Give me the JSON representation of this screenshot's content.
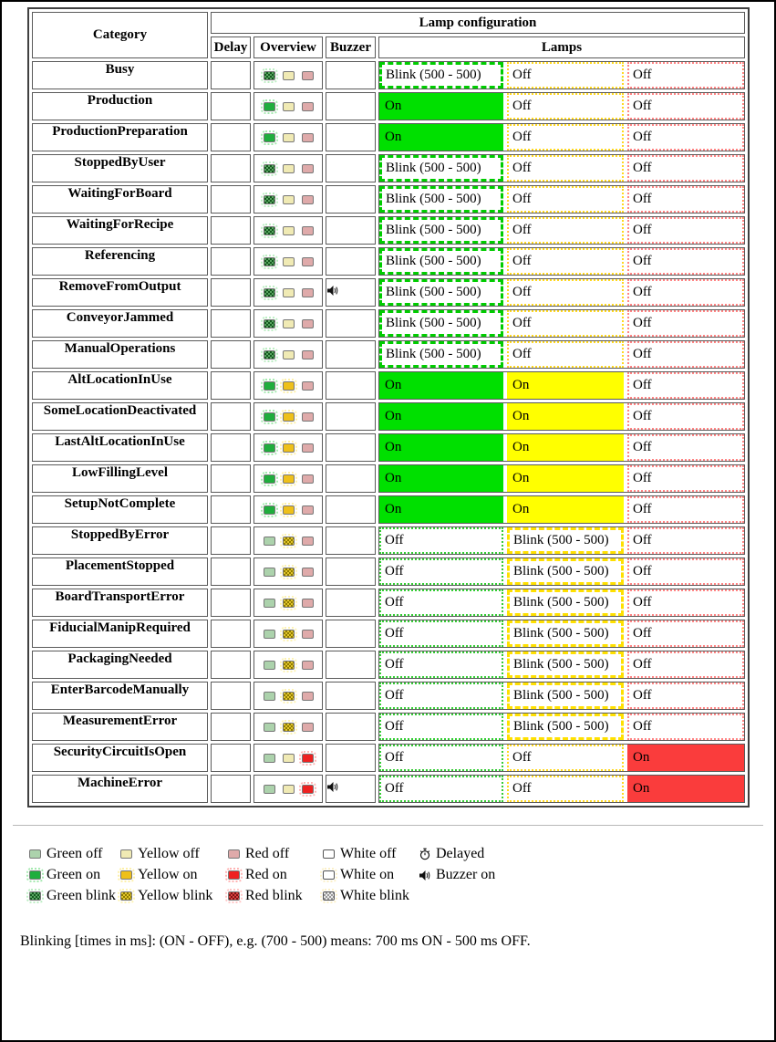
{
  "header": {
    "category": "Category",
    "lamp_configuration": "Lamp configuration",
    "delay": "Delay",
    "overview": "Overview",
    "buzzer": "Buzzer",
    "lamps": "Lamps"
  },
  "lamp_labels": {
    "on": "On",
    "off": "Off",
    "blink": "Blink (500 - 500)"
  },
  "lamp_colors": {
    "green_on": "#00e000",
    "yellow_on": "#ffff00",
    "red_on": "#fa3c3c",
    "green_blink_border": "#00cc00",
    "yellow_blink_border": "#ffe000",
    "green_off_border": "#33cc33",
    "yellow_off_border": "#ffd820",
    "red_off_border": "#ff8484"
  },
  "rows": [
    {
      "category": "Busy",
      "delay": "",
      "overview": [
        "green-blink",
        "yellow-off",
        "red-off"
      ],
      "buzzer": false,
      "lamps": [
        "blink",
        "off",
        "off"
      ]
    },
    {
      "category": "Production",
      "delay": "",
      "overview": [
        "green-on",
        "yellow-off",
        "red-off"
      ],
      "buzzer": false,
      "lamps": [
        "on",
        "off",
        "off"
      ]
    },
    {
      "category": "ProductionPreparation",
      "delay": "",
      "overview": [
        "green-on",
        "yellow-off",
        "red-off"
      ],
      "buzzer": false,
      "lamps": [
        "on",
        "off",
        "off"
      ]
    },
    {
      "category": "StoppedByUser",
      "delay": "",
      "overview": [
        "green-blink",
        "yellow-off",
        "red-off"
      ],
      "buzzer": false,
      "lamps": [
        "blink",
        "off",
        "off"
      ]
    },
    {
      "category": "WaitingForBoard",
      "delay": "",
      "overview": [
        "green-blink",
        "yellow-off",
        "red-off"
      ],
      "buzzer": false,
      "lamps": [
        "blink",
        "off",
        "off"
      ]
    },
    {
      "category": "WaitingForRecipe",
      "delay": "",
      "overview": [
        "green-blink",
        "yellow-off",
        "red-off"
      ],
      "buzzer": false,
      "lamps": [
        "blink",
        "off",
        "off"
      ]
    },
    {
      "category": "Referencing",
      "delay": "",
      "overview": [
        "green-blink",
        "yellow-off",
        "red-off"
      ],
      "buzzer": false,
      "lamps": [
        "blink",
        "off",
        "off"
      ]
    },
    {
      "category": "RemoveFromOutput",
      "delay": "",
      "overview": [
        "green-blink",
        "yellow-off",
        "red-off"
      ],
      "buzzer": true,
      "lamps": [
        "blink",
        "off",
        "off"
      ]
    },
    {
      "category": "ConveyorJammed",
      "delay": "",
      "overview": [
        "green-blink",
        "yellow-off",
        "red-off"
      ],
      "buzzer": false,
      "lamps": [
        "blink",
        "off",
        "off"
      ]
    },
    {
      "category": "ManualOperations",
      "delay": "",
      "overview": [
        "green-blink",
        "yellow-off",
        "red-off"
      ],
      "buzzer": false,
      "lamps": [
        "blink",
        "off",
        "off"
      ]
    },
    {
      "category": "AltLocationInUse",
      "delay": "",
      "overview": [
        "green-on",
        "yellow-on",
        "red-off"
      ],
      "buzzer": false,
      "lamps": [
        "on",
        "on",
        "off"
      ]
    },
    {
      "category": "SomeLocationDeactivated",
      "delay": "",
      "overview": [
        "green-on",
        "yellow-on",
        "red-off"
      ],
      "buzzer": false,
      "lamps": [
        "on",
        "on",
        "off"
      ]
    },
    {
      "category": "LastAltLocationInUse",
      "delay": "",
      "overview": [
        "green-on",
        "yellow-on",
        "red-off"
      ],
      "buzzer": false,
      "lamps": [
        "on",
        "on",
        "off"
      ]
    },
    {
      "category": "LowFillingLevel",
      "delay": "",
      "overview": [
        "green-on",
        "yellow-on",
        "red-off"
      ],
      "buzzer": false,
      "lamps": [
        "on",
        "on",
        "off"
      ]
    },
    {
      "category": "SetupNotComplete",
      "delay": "",
      "overview": [
        "green-on",
        "yellow-on",
        "red-off"
      ],
      "buzzer": false,
      "lamps": [
        "on",
        "on",
        "off"
      ]
    },
    {
      "category": "StoppedByError",
      "delay": "",
      "overview": [
        "green-off",
        "yellow-blink",
        "red-off"
      ],
      "buzzer": false,
      "lamps": [
        "off",
        "blink",
        "off"
      ]
    },
    {
      "category": "PlacementStopped",
      "delay": "",
      "overview": [
        "green-off",
        "yellow-blink",
        "red-off"
      ],
      "buzzer": false,
      "lamps": [
        "off",
        "blink",
        "off"
      ]
    },
    {
      "category": "BoardTransportError",
      "delay": "",
      "overview": [
        "green-off",
        "yellow-blink",
        "red-off"
      ],
      "buzzer": false,
      "lamps": [
        "off",
        "blink",
        "off"
      ]
    },
    {
      "category": "FiducialManipRequired",
      "delay": "",
      "overview": [
        "green-off",
        "yellow-blink",
        "red-off"
      ],
      "buzzer": false,
      "lamps": [
        "off",
        "blink",
        "off"
      ]
    },
    {
      "category": "PackagingNeeded",
      "delay": "",
      "overview": [
        "green-off",
        "yellow-blink",
        "red-off"
      ],
      "buzzer": false,
      "lamps": [
        "off",
        "blink",
        "off"
      ]
    },
    {
      "category": "EnterBarcodeManually",
      "delay": "",
      "overview": [
        "green-off",
        "yellow-blink",
        "red-off"
      ],
      "buzzer": false,
      "lamps": [
        "off",
        "blink",
        "off"
      ]
    },
    {
      "category": "MeasurementError",
      "delay": "",
      "overview": [
        "green-off",
        "yellow-blink",
        "red-off"
      ],
      "buzzer": false,
      "lamps": [
        "off",
        "blink",
        "off"
      ]
    },
    {
      "category": "SecurityCircuitIsOpen",
      "delay": "",
      "overview": [
        "green-off",
        "yellow-off",
        "red-on"
      ],
      "buzzer": false,
      "lamps": [
        "off",
        "off",
        "on"
      ]
    },
    {
      "category": "MachineError",
      "delay": "",
      "overview": [
        "green-off",
        "yellow-off",
        "red-on"
      ],
      "buzzer": true,
      "lamps": [
        "off",
        "off",
        "on"
      ]
    }
  ],
  "legend": {
    "rows": [
      [
        {
          "icon": "green-off",
          "label": "Green off"
        },
        {
          "icon": "yellow-off",
          "label": "Yellow off"
        },
        {
          "icon": "red-off",
          "label": "Red off"
        },
        {
          "icon": "white-off",
          "label": "White off"
        },
        {
          "icon": "delayed",
          "label": "Delayed"
        }
      ],
      [
        {
          "icon": "green-on",
          "label": "Green on"
        },
        {
          "icon": "yellow-on",
          "label": "Yellow on"
        },
        {
          "icon": "red-on",
          "label": "Red on"
        },
        {
          "icon": "white-on",
          "label": "White on"
        },
        {
          "icon": "buzzer-on",
          "label": "Buzzer on"
        }
      ],
      [
        {
          "icon": "green-blink",
          "label": "Green blink"
        },
        {
          "icon": "yellow-blink",
          "label": "Yellow blink"
        },
        {
          "icon": "red-blink",
          "label": "Red blink"
        },
        {
          "icon": "white-blink",
          "label": "White blink"
        }
      ]
    ]
  },
  "footnote": "Blinking [times in ms]: (ON - OFF), e.g. (700 - 500) means: 700 ms ON - 500 ms OFF."
}
